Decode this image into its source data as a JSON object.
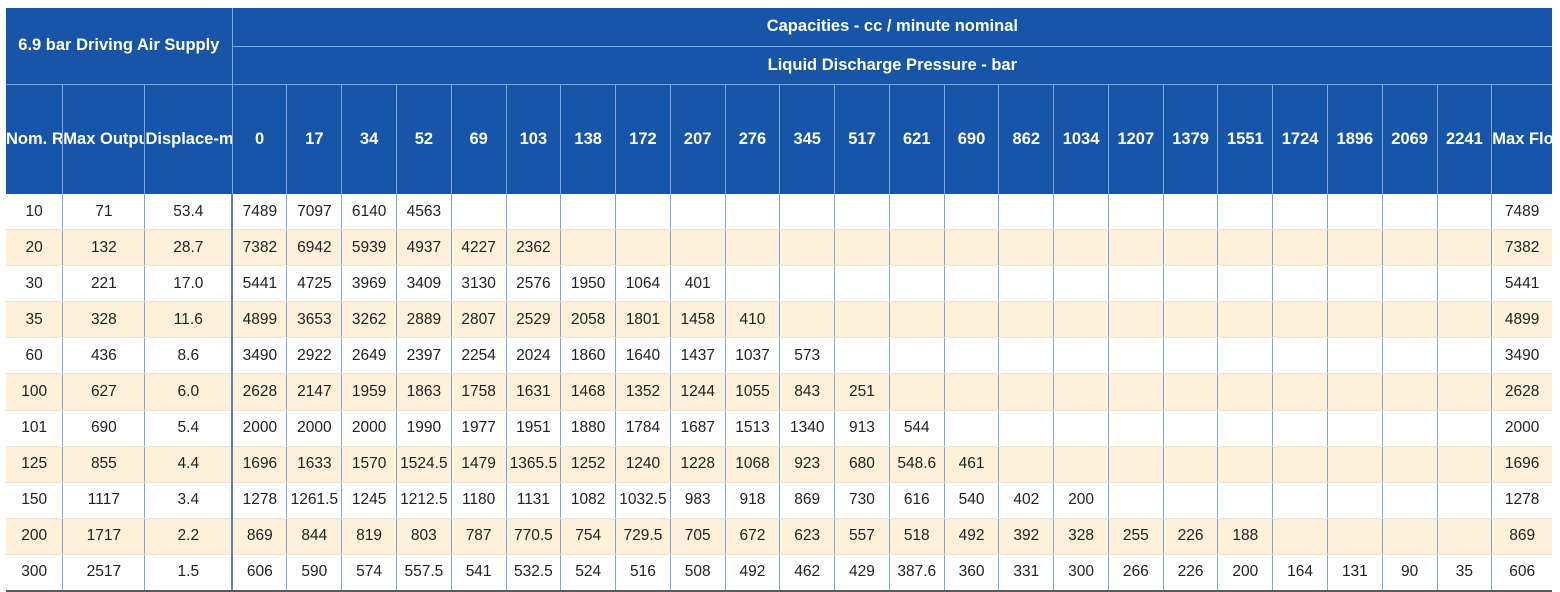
{
  "header": {
    "title": "6.9 bar Driving Air Supply",
    "capacities": "Capacities - cc / minute nominal",
    "discharge": "Liquid Discharge Pressure - bar"
  },
  "columns": {
    "ratio": "Nom. Ratio",
    "max_output": "Max Output Pressure bar",
    "displacement": "Displace-ment per Stroke cc",
    "pressures": [
      "0",
      "17",
      "34",
      "52",
      "69",
      "103",
      "138",
      "172",
      "207",
      "276",
      "345",
      "517",
      "621",
      "690",
      "862",
      "1034",
      "1207",
      "1379",
      "1551",
      "1724",
      "1896",
      "2069",
      "2241"
    ],
    "max_flow": "Max Flow"
  },
  "rows": [
    {
      "ratio": "10",
      "max_output": "71",
      "displacement": "53.4",
      "values": [
        "7489",
        "7097",
        "6140",
        "4563",
        "",
        "",
        "",
        "",
        "",
        "",
        "",
        "",
        "",
        "",
        "",
        "",
        "",
        "",
        "",
        "",
        "",
        "",
        ""
      ],
      "max_flow": "7489"
    },
    {
      "ratio": "20",
      "max_output": "132",
      "displacement": "28.7",
      "values": [
        "7382",
        "6942",
        "5939",
        "4937",
        "4227",
        "2362",
        "",
        "",
        "",
        "",
        "",
        "",
        "",
        "",
        "",
        "",
        "",
        "",
        "",
        "",
        "",
        "",
        ""
      ],
      "max_flow": "7382"
    },
    {
      "ratio": "30",
      "max_output": "221",
      "displacement": "17.0",
      "values": [
        "5441",
        "4725",
        "3969",
        "3409",
        "3130",
        "2576",
        "1950",
        "1064",
        "401",
        "",
        "",
        "",
        "",
        "",
        "",
        "",
        "",
        "",
        "",
        "",
        "",
        "",
        ""
      ],
      "max_flow": "5441"
    },
    {
      "ratio": "35",
      "max_output": "328",
      "displacement": "11.6",
      "values": [
        "4899",
        "3653",
        "3262",
        "2889",
        "2807",
        "2529",
        "2058",
        "1801",
        "1458",
        "410",
        "",
        "",
        "",
        "",
        "",
        "",
        "",
        "",
        "",
        "",
        "",
        "",
        ""
      ],
      "max_flow": "4899"
    },
    {
      "ratio": "60",
      "max_output": "436",
      "displacement": "8.6",
      "values": [
        "3490",
        "2922",
        "2649",
        "2397",
        "2254",
        "2024",
        "1860",
        "1640",
        "1437",
        "1037",
        "573",
        "",
        "",
        "",
        "",
        "",
        "",
        "",
        "",
        "",
        "",
        "",
        ""
      ],
      "max_flow": "3490"
    },
    {
      "ratio": "100",
      "max_output": "627",
      "displacement": "6.0",
      "values": [
        "2628",
        "2147",
        "1959",
        "1863",
        "1758",
        "1631",
        "1468",
        "1352",
        "1244",
        "1055",
        "843",
        "251",
        "",
        "",
        "",
        "",
        "",
        "",
        "",
        "",
        "",
        "",
        ""
      ],
      "max_flow": "2628"
    },
    {
      "ratio": "101",
      "max_output": "690",
      "displacement": "5.4",
      "values": [
        "2000",
        "2000",
        "2000",
        "1990",
        "1977",
        "1951",
        "1880",
        "1784",
        "1687",
        "1513",
        "1340",
        "913",
        "544",
        "",
        "",
        "",
        "",
        "",
        "",
        "",
        "",
        "",
        ""
      ],
      "max_flow": "2000"
    },
    {
      "ratio": "125",
      "max_output": "855",
      "displacement": "4.4",
      "values": [
        "1696",
        "1633",
        "1570",
        "1524.5",
        "1479",
        "1365.5",
        "1252",
        "1240",
        "1228",
        "1068",
        "923",
        "680",
        "548.6",
        "461",
        "",
        "",
        "",
        "",
        "",
        "",
        "",
        "",
        ""
      ],
      "max_flow": "1696"
    },
    {
      "ratio": "150",
      "max_output": "1117",
      "displacement": "3.4",
      "values": [
        "1278",
        "1261.5",
        "1245",
        "1212.5",
        "1180",
        "1131",
        "1082",
        "1032.5",
        "983",
        "918",
        "869",
        "730",
        "616",
        "540",
        "402",
        "200",
        "",
        "",
        "",
        "",
        "",
        "",
        ""
      ],
      "max_flow": "1278"
    },
    {
      "ratio": "200",
      "max_output": "1717",
      "displacement": "2.2",
      "values": [
        "869",
        "844",
        "819",
        "803",
        "787",
        "770.5",
        "754",
        "729.5",
        "705",
        "672",
        "623",
        "557",
        "518",
        "492",
        "392",
        "328",
        "255",
        "226",
        "188",
        "",
        "",
        "",
        ""
      ],
      "max_flow": "869"
    },
    {
      "ratio": "300",
      "max_output": "2517",
      "displacement": "1.5",
      "values": [
        "606",
        "590",
        "574",
        "557.5",
        "541",
        "532.5",
        "524",
        "516",
        "508",
        "492",
        "462",
        "429",
        "387.6",
        "360",
        "331",
        "300",
        "266",
        "226",
        "200",
        "164",
        "131",
        "90",
        "35"
      ],
      "max_flow": "606"
    }
  ],
  "colors": {
    "header_blue": "#1655a8",
    "band_cream": "#fdf1da",
    "header_text": "#ffffff"
  }
}
